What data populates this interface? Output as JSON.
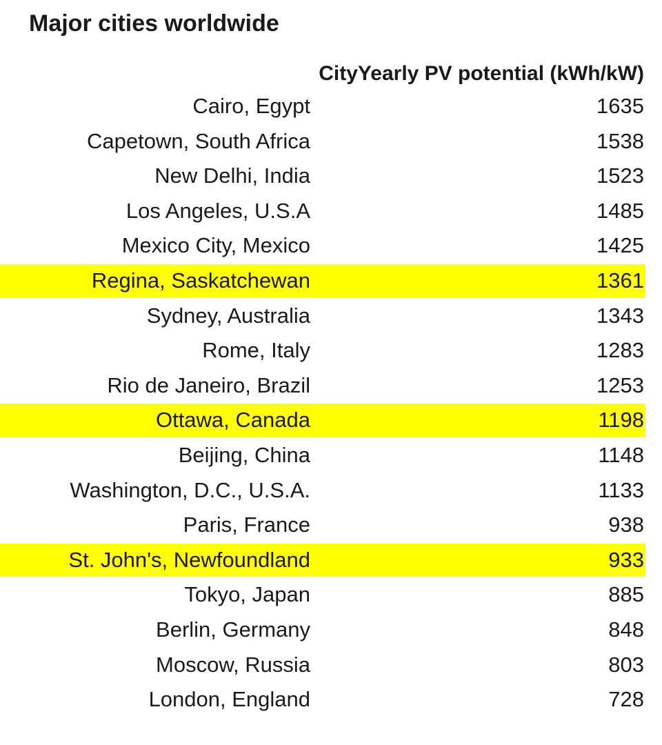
{
  "title": "Major cities worldwide",
  "columns": {
    "city": "City",
    "value": "Yearly PV potential (kWh/kW)"
  },
  "highlight_color": "#ffff00",
  "rows": [
    {
      "city": "Cairo, Egypt",
      "value": "1635",
      "highlighted": false
    },
    {
      "city": "Capetown, South Africa",
      "value": "1538",
      "highlighted": false
    },
    {
      "city": "New Delhi, India",
      "value": "1523",
      "highlighted": false
    },
    {
      "city": "Los Angeles, U.S.A",
      "value": "1485",
      "highlighted": false
    },
    {
      "city": "Mexico City, Mexico",
      "value": "1425",
      "highlighted": false
    },
    {
      "city": "Regina, Saskatchewan",
      "value": "1361",
      "highlighted": true
    },
    {
      "city": "Sydney, Australia",
      "value": "1343",
      "highlighted": false
    },
    {
      "city": "Rome, Italy",
      "value": "1283",
      "highlighted": false
    },
    {
      "city": "Rio de Janeiro, Brazil",
      "value": "1253",
      "highlighted": false
    },
    {
      "city": "Ottawa, Canada",
      "value": "1198",
      "highlighted": true
    },
    {
      "city": "Beijing, China",
      "value": "1148",
      "highlighted": false
    },
    {
      "city": "Washington, D.C., U.S.A.",
      "value": "1133",
      "highlighted": false
    },
    {
      "city": "Paris, France",
      "value": "938",
      "highlighted": false
    },
    {
      "city": "St. John's, Newfoundland",
      "value": "933",
      "highlighted": true
    },
    {
      "city": "Tokyo, Japan",
      "value": "885",
      "highlighted": false
    },
    {
      "city": "Berlin, Germany",
      "value": "848",
      "highlighted": false
    },
    {
      "city": "Moscow, Russia",
      "value": "803",
      "highlighted": false
    },
    {
      "city": "London, England",
      "value": "728",
      "highlighted": false
    }
  ]
}
